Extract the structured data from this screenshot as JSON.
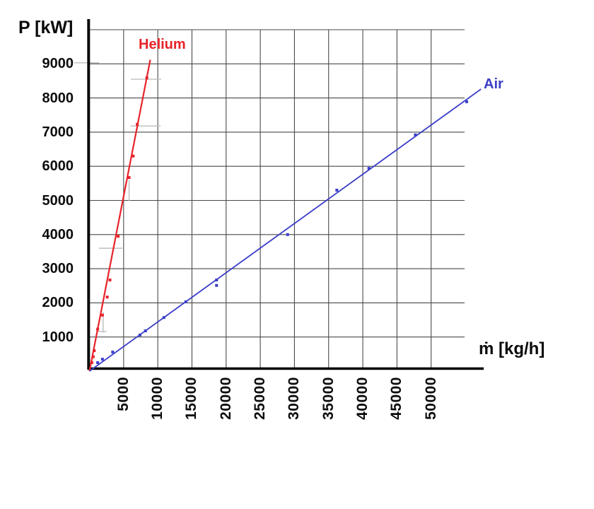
{
  "chart_data": {
    "type": "scatter",
    "title": "",
    "xlabel": "ṁ [kg/h]",
    "ylabel": "P [kW]",
    "xlim": [
      0,
      55000
    ],
    "ylim": [
      0,
      10000
    ],
    "x_ticks": [
      5000,
      10000,
      15000,
      20000,
      25000,
      30000,
      35000,
      40000,
      45000,
      50000
    ],
    "y_ticks": [
      1000,
      2000,
      3000,
      4000,
      5000,
      6000,
      7000,
      8000,
      9000
    ],
    "grid": true,
    "legend_position": "inline-labels-at-line-ends",
    "series": [
      {
        "name": "Helium",
        "color": "#e8232a",
        "marker": "square",
        "points": [
          [
            350,
            250
          ],
          [
            550,
            420
          ],
          [
            700,
            600
          ],
          [
            1200,
            1230
          ],
          [
            1900,
            1640
          ],
          [
            2600,
            2170
          ],
          [
            3000,
            2670
          ],
          [
            4200,
            3950
          ],
          [
            5800,
            5670
          ],
          [
            6400,
            6300
          ],
          [
            7000,
            7230
          ],
          [
            8400,
            8590
          ]
        ],
        "fit_line": [
          [
            0,
            0
          ],
          [
            8900,
            9120
          ]
        ]
      },
      {
        "name": "Air",
        "color": "#3a3ec8",
        "marker": "square",
        "points": [
          [
            1200,
            250
          ],
          [
            1900,
            350
          ],
          [
            3400,
            560
          ],
          [
            7400,
            1060
          ],
          [
            8200,
            1180
          ],
          [
            10900,
            1570
          ],
          [
            14100,
            2030
          ],
          [
            18600,
            2510
          ],
          [
            18600,
            2670
          ],
          [
            29000,
            4000
          ],
          [
            36200,
            5300
          ],
          [
            40900,
            5940
          ],
          [
            47700,
            6920
          ],
          [
            55200,
            7890
          ]
        ],
        "fit_line": [
          [
            0,
            0
          ],
          [
            57300,
            8260
          ]
        ]
      }
    ],
    "artifact_marks": [
      [
        -2200,
        9030,
        1400,
        9030
      ],
      [
        6050,
        8550,
        10500,
        8550
      ],
      [
        6000,
        7180,
        10400,
        7180
      ],
      [
        5800,
        4990,
        5800,
        5590
      ],
      [
        1400,
        3600,
        4800,
        3600
      ],
      [
        2000,
        1130,
        2000,
        1730
      ],
      [
        1300,
        1160,
        2500,
        1160
      ]
    ]
  },
  "colors": {
    "background": "#ffffff",
    "grid": "#4a4a4a",
    "axis": "#0a0a0a",
    "tick_text": "#0d0d0d",
    "helium": "#e8232a",
    "air": "#3a3ec8",
    "artifact": "#bdbdbd"
  }
}
